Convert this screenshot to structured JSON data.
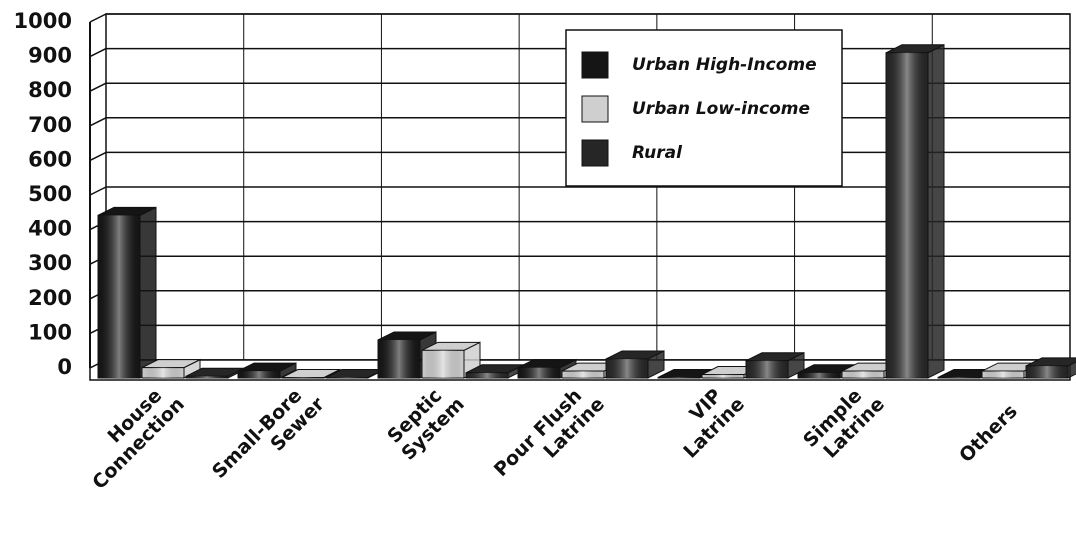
{
  "chart_data": {
    "type": "bar3d",
    "categories": [
      [
        "House",
        "Connection"
      ],
      [
        "Small-Bore",
        "Sewer"
      ],
      [
        "Septic",
        "System"
      ],
      [
        "Pour Flush",
        "Latrine"
      ],
      [
        "VIP",
        "Latrine"
      ],
      [
        "Simple",
        "Latrine"
      ],
      [
        "Others"
      ]
    ],
    "series": [
      {
        "name": "Urban High-Income",
        "color": "#151515",
        "values": [
          470,
          20,
          110,
          30,
          0,
          15,
          0
        ]
      },
      {
        "name": "Urban Low-income",
        "color": "#cfcfcf",
        "values": [
          30,
          0,
          80,
          20,
          10,
          20,
          20
        ]
      },
      {
        "name": "Rural",
        "color": "#262626",
        "values": [
          5,
          0,
          15,
          55,
          50,
          940,
          35
        ]
      }
    ],
    "ylim": [
      0,
      1000
    ],
    "yticks": [
      0,
      100,
      200,
      300,
      400,
      500,
      600,
      700,
      800,
      900,
      1000
    ],
    "grid": true,
    "legend": "top-right"
  }
}
